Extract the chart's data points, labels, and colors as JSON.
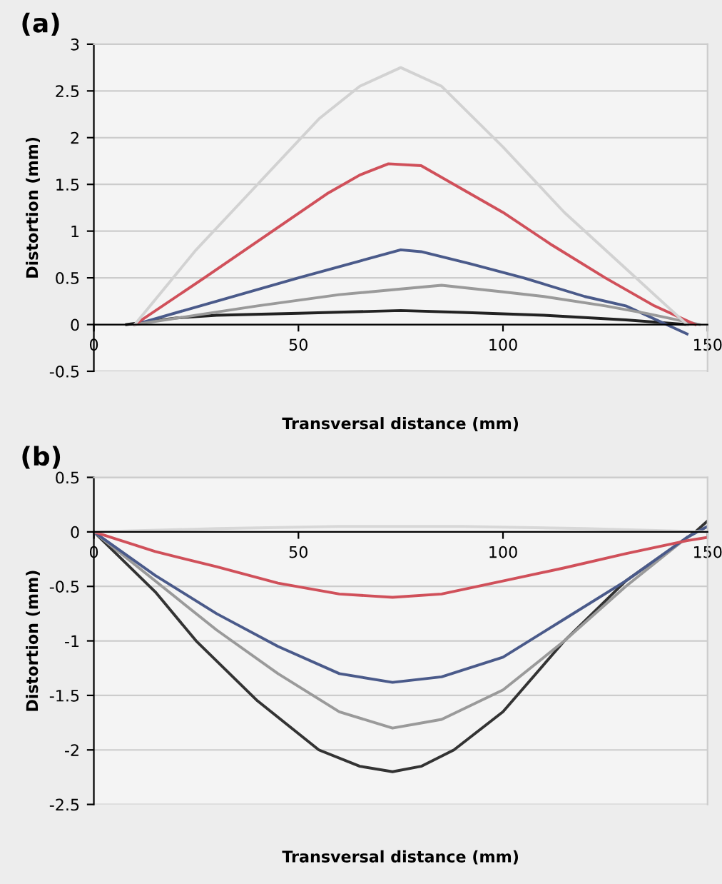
{
  "chart_data": [
    {
      "type": "line",
      "title": "(a)",
      "xlabel": "Transversal distance (mm)",
      "ylabel": "Distortion (mm)",
      "xlim": [
        0,
        150
      ],
      "ylim": [
        -0.5,
        3
      ],
      "xticks": [
        0,
        50,
        100,
        150
      ],
      "yticks": [
        -0.5,
        0,
        0.5,
        1,
        1.5,
        2,
        2.5,
        3
      ],
      "grid": "y",
      "marker": "none",
      "line_style": "solid",
      "series": [
        {
          "color": "#222222",
          "x": [
            8,
            20,
            30,
            50,
            75,
            90,
            110,
            130,
            145
          ],
          "values": [
            0,
            0.07,
            0.1,
            0.12,
            0.15,
            0.13,
            0.1,
            0.05,
            0
          ]
        },
        {
          "color": "#4a5a8a",
          "x": [
            10,
            30,
            50,
            65,
            75,
            80,
            92,
            105,
            120,
            130,
            145
          ],
          "values": [
            0,
            0.25,
            0.5,
            0.68,
            0.8,
            0.78,
            0.65,
            0.5,
            0.3,
            0.2,
            -0.1
          ]
        },
        {
          "color": "#9a9a9a",
          "x": [
            10,
            25,
            40,
            60,
            75,
            85,
            100,
            110,
            125,
            135,
            148
          ],
          "values": [
            0,
            0.1,
            0.2,
            0.32,
            0.38,
            0.42,
            0.35,
            0.3,
            0.2,
            0.12,
            0
          ]
        },
        {
          "color": "#d0505a",
          "x": [
            10,
            27,
            37,
            47,
            57,
            65,
            72,
            80,
            90,
            100,
            112,
            125,
            137,
            147
          ],
          "values": [
            0,
            0.5,
            0.8,
            1.1,
            1.4,
            1.6,
            1.72,
            1.7,
            1.45,
            1.2,
            0.85,
            0.5,
            0.2,
            0
          ]
        },
        {
          "color": "#d2d2d2",
          "x": [
            10,
            25,
            40,
            55,
            65,
            75,
            85,
            100,
            115,
            130,
            145
          ],
          "values": [
            0,
            0.8,
            1.5,
            2.2,
            2.55,
            2.75,
            2.55,
            1.9,
            1.2,
            0.6,
            0
          ]
        }
      ]
    },
    {
      "type": "line",
      "title": "(b)",
      "xlabel": "Transversal distance (mm)",
      "ylabel": "Distortion (mm)",
      "xlim": [
        0,
        150
      ],
      "ylim": [
        -2.5,
        0.5
      ],
      "xticks": [
        0,
        50,
        100,
        150
      ],
      "yticks": [
        -2.5,
        -2,
        -1.5,
        -1,
        -0.5,
        0,
        0.5
      ],
      "grid": "y",
      "marker": "none",
      "line_style": "solid",
      "series": [
        {
          "color": "#333333",
          "x": [
            0,
            15,
            25,
            40,
            55,
            65,
            73,
            80,
            88,
            100,
            115,
            130,
            147,
            150
          ],
          "values": [
            0,
            -0.55,
            -1,
            -1.55,
            -2,
            -2.15,
            -2.2,
            -2.15,
            -2,
            -1.65,
            -1,
            -0.45,
            0,
            0.1
          ]
        },
        {
          "color": "#9a9a9a",
          "x": [
            0,
            15,
            30,
            45,
            60,
            73,
            85,
            100,
            115,
            130,
            145,
            150
          ],
          "values": [
            0,
            -0.45,
            -0.9,
            -1.3,
            -1.65,
            -1.8,
            -1.72,
            -1.45,
            -1,
            -0.5,
            -0.05,
            0.05
          ]
        },
        {
          "color": "#4a5a8a",
          "x": [
            0,
            15,
            30,
            45,
            60,
            73,
            85,
            100,
            115,
            130,
            145,
            150
          ],
          "values": [
            0,
            -0.4,
            -0.75,
            -1.05,
            -1.3,
            -1.38,
            -1.33,
            -1.15,
            -0.8,
            -0.45,
            -0.05,
            0.05
          ]
        },
        {
          "color": "#d0505a",
          "x": [
            0,
            15,
            30,
            45,
            60,
            73,
            85,
            100,
            115,
            130,
            145,
            150
          ],
          "values": [
            0,
            -0.18,
            -0.32,
            -0.47,
            -0.57,
            -0.6,
            -0.57,
            -0.45,
            -0.33,
            -0.2,
            -0.08,
            -0.05
          ]
        },
        {
          "color": "#d8d8d8",
          "x": [
            0,
            30,
            60,
            75,
            90,
            120,
            150
          ],
          "values": [
            0,
            0.03,
            0.05,
            0.05,
            0.05,
            0.03,
            0
          ]
        }
      ]
    }
  ]
}
